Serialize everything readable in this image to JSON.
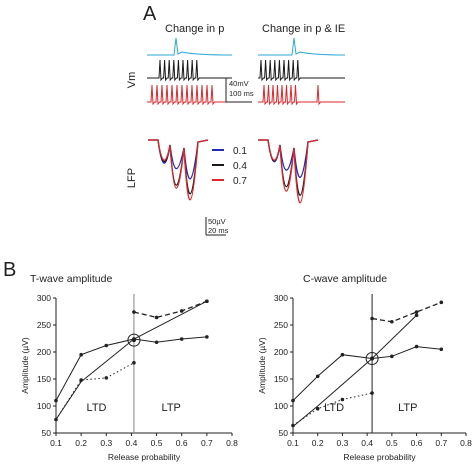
{
  "panel_a": {
    "label": "A",
    "col_left_title": "Change in p",
    "col_right_title": "Change in p & IE",
    "vm_label": "Vm",
    "vm_scale_v": "40mV",
    "vm_scale_t": "100 ms",
    "lfp_label": "LFP",
    "lfp_scale_v": "50µV",
    "lfp_scale_t": "20 ms",
    "legend": [
      {
        "label": "0.1",
        "color": "#1f2bb5"
      },
      {
        "label": "0.4",
        "color": "#1a1a1a"
      },
      {
        "label": "0.7",
        "color": "#e0262b"
      }
    ],
    "colors": {
      "cyan": "#2aa9d6",
      "black": "#1a1a1a",
      "red": "#e0262b",
      "blue": "#1f2bb5"
    }
  },
  "panel_b": {
    "label": "B",
    "ltd_label": "LTD",
    "ltp_label": "LTP"
  },
  "chart_data": [
    {
      "type": "line",
      "title": "T-wave amplitude",
      "xlabel": "Release probability",
      "ylabel": "Amplitude (µV)",
      "xlim": [
        0.1,
        0.8
      ],
      "ylim": [
        50,
        300
      ],
      "xticks": [
        "0.1",
        "0.2",
        "0.3",
        "0.4",
        "0.5",
        "0.6",
        "0.7",
        "0.8"
      ],
      "yticks": [
        "50",
        "100",
        "150",
        "200",
        "250",
        "300"
      ],
      "divider_x": 0.41,
      "crossing": {
        "x": 0.41,
        "y": 222
      },
      "series": [
        {
          "style": "solid",
          "x": [
            0.1,
            0.2,
            0.3,
            0.41,
            0.5,
            0.6,
            0.7
          ],
          "y": [
            110,
            195,
            212,
            224,
            218,
            224,
            228
          ]
        },
        {
          "style": "straight",
          "x": [
            0.1,
            0.2,
            0.41
          ],
          "y": [
            75,
            145,
            224
          ]
        },
        {
          "style": "dotted",
          "x": [
            0.1,
            0.2,
            0.3,
            0.41
          ],
          "y": [
            75,
            148,
            152,
            180
          ]
        },
        {
          "style": "dashed",
          "x": [
            0.41,
            0.5,
            0.6,
            0.7
          ],
          "y": [
            274,
            264,
            276,
            294
          ]
        },
        {
          "style": "straight",
          "x": [
            0.41,
            0.7
          ],
          "y": [
            224,
            294
          ]
        }
      ]
    },
    {
      "type": "line",
      "title": "C-wave amplitude",
      "xlabel": "Release probability",
      "ylabel": "Amplitude (µV)",
      "xlim": [
        0.1,
        0.8
      ],
      "ylim": [
        50,
        300
      ],
      "xticks": [
        "0.1",
        "0.2",
        "0.3",
        "0.4",
        "0.5",
        "0.6",
        "0.7",
        "0.8"
      ],
      "yticks": [
        "50",
        "100",
        "150",
        "200",
        "250",
        "300"
      ],
      "divider_x": 0.42,
      "crossing": {
        "x": 0.42,
        "y": 188
      },
      "series": [
        {
          "style": "solid",
          "x": [
            0.1,
            0.2,
            0.3,
            0.42,
            0.5,
            0.6,
            0.7
          ],
          "y": [
            110,
            155,
            195,
            188,
            192,
            210,
            205
          ]
        },
        {
          "style": "straight",
          "x": [
            0.1,
            0.2,
            0.42
          ],
          "y": [
            62,
            100,
            188
          ]
        },
        {
          "style": "dotted",
          "x": [
            0.1,
            0.2,
            0.3,
            0.42
          ],
          "y": [
            64,
            95,
            112,
            124
          ]
        },
        {
          "style": "dashed",
          "x": [
            0.42,
            0.5,
            0.6,
            0.7
          ],
          "y": [
            262,
            256,
            274,
            292
          ]
        },
        {
          "style": "straight",
          "x": [
            0.42,
            0.6
          ],
          "y": [
            188,
            268
          ]
        }
      ]
    }
  ]
}
